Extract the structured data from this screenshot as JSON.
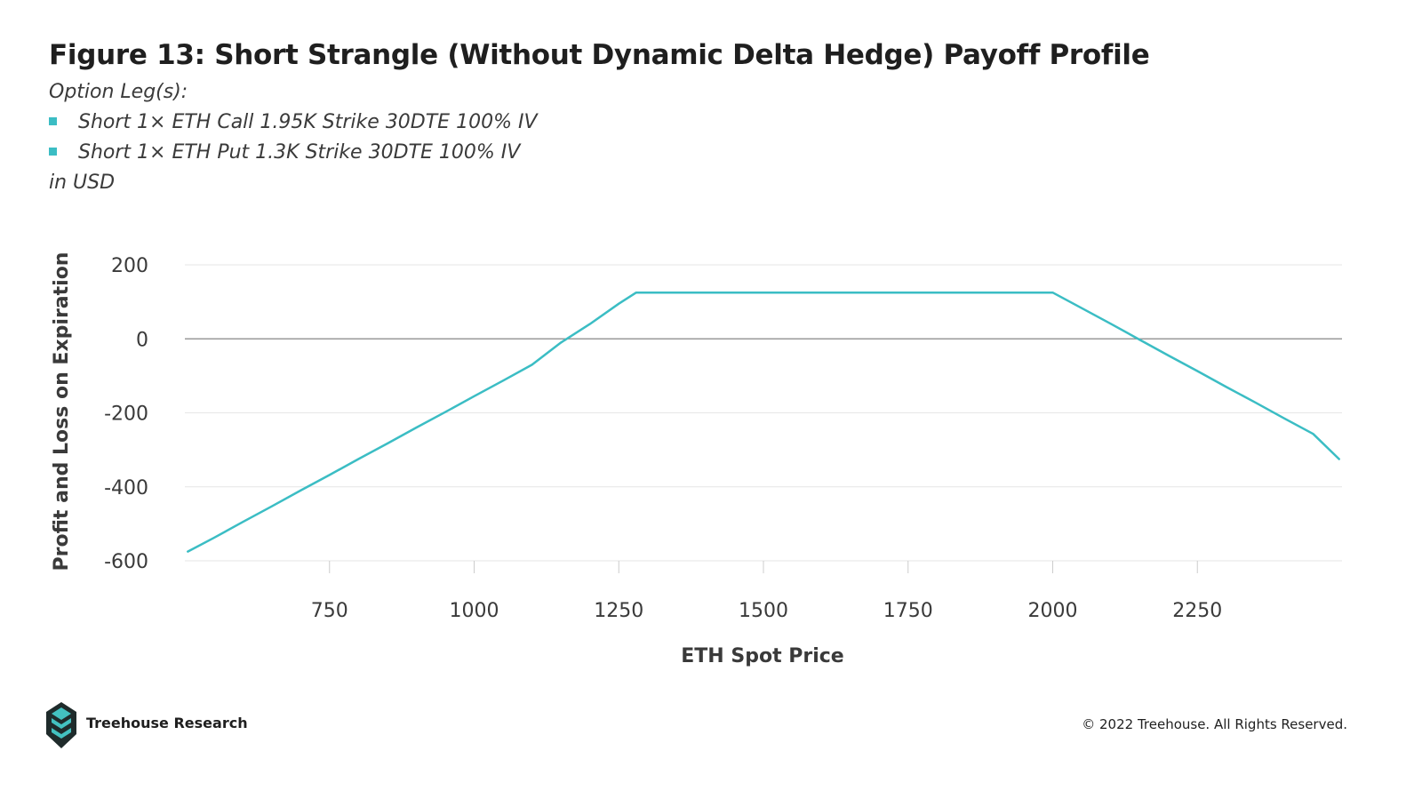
{
  "header": {
    "title": "Figure 13: Short Strangle (Without Dynamic Delta Hedge) Payoff Profile",
    "subtitle_intro": "Option Leg(s):",
    "legs": [
      "Short 1× ETH Call 1.95K Strike 30DTE 100% IV",
      "Short 1× ETH Put 1.3K Strike 30DTE 100% IV"
    ],
    "units": "in USD"
  },
  "colors": {
    "series_line": "#3bbdc4",
    "bullet": "#3bbdc4",
    "grid": "#e6e6e6",
    "zero_line": "#9a9a9a",
    "logo_dark": "#1f2b2b",
    "logo_teal": "#43c1c0"
  },
  "icons": {
    "bullet": "square-bullet",
    "logo": "treehouse-logo-icon"
  },
  "footer": {
    "brand": "Treehouse Research",
    "copyright": "© 2022 Treehouse. All Rights Reserved."
  },
  "chart_data": {
    "type": "line",
    "title": "",
    "xlabel": "ETH Spot Price",
    "ylabel": "Profit and Loss on Expiration",
    "xlim": [
      500,
      2500
    ],
    "ylim": [
      -600,
      200
    ],
    "x_ticks": [
      750,
      1000,
      1250,
      1500,
      1750,
      2000,
      2250
    ],
    "y_ticks": [
      200,
      0,
      -200,
      -400,
      -600
    ],
    "grid": "horizontal",
    "legend": "none",
    "series": [
      {
        "x": [
          505,
          550,
          600,
          650,
          700,
          750,
          800,
          850,
          900,
          950,
          1000,
          1050,
          1100,
          1150,
          1200,
          1250,
          1280,
          1300,
          1400,
          1500,
          1600,
          1700,
          1800,
          1900,
          2000,
          2050,
          2100,
          2150,
          2200,
          2250,
          2300,
          2350,
          2400,
          2450,
          2495
        ],
        "y": [
          -575,
          -538,
          -495,
          -453,
          -410,
          -368,
          -325,
          -283,
          -240,
          -198,
          -155,
          -113,
          -70,
          -10,
          40,
          95,
          125,
          125,
          125,
          125,
          125,
          125,
          125,
          125,
          125,
          83,
          41,
          -2,
          -45,
          -87,
          -130,
          -172,
          -215,
          -257,
          -325
        ]
      }
    ]
  }
}
